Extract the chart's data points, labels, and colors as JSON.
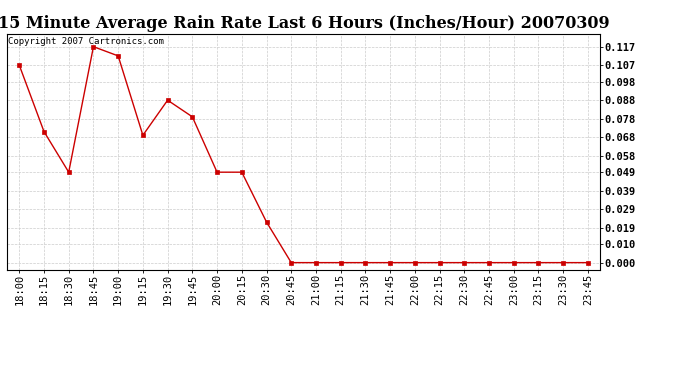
{
  "title": "15 Minute Average Rain Rate Last 6 Hours (Inches/Hour) 20070309",
  "copyright_text": "Copyright 2007 Cartronics.com",
  "line_color": "#cc0000",
  "marker_color": "#cc0000",
  "background_color": "#ffffff",
  "grid_color": "#cccccc",
  "x_labels": [
    "18:00",
    "18:15",
    "18:30",
    "18:45",
    "19:00",
    "19:15",
    "19:30",
    "19:45",
    "20:00",
    "20:15",
    "20:30",
    "20:45",
    "21:00",
    "21:15",
    "21:30",
    "21:45",
    "22:00",
    "22:15",
    "22:30",
    "22:45",
    "23:00",
    "23:15",
    "23:30",
    "23:45"
  ],
  "y_values": [
    0.107,
    0.071,
    0.049,
    0.117,
    0.112,
    0.069,
    0.088,
    0.079,
    0.049,
    0.049,
    0.022,
    0.0,
    0.0,
    0.0,
    0.0,
    0.0,
    0.0,
    0.0,
    0.0,
    0.0,
    0.0,
    0.0,
    0.0,
    0.0
  ],
  "yticks": [
    0.0,
    0.01,
    0.019,
    0.029,
    0.039,
    0.049,
    0.058,
    0.068,
    0.078,
    0.088,
    0.098,
    0.107,
    0.117
  ],
  "ytick_labels": [
    "0.000",
    "0.010",
    "0.019",
    "0.029",
    "0.039",
    "0.049",
    "0.058",
    "0.068",
    "0.078",
    "0.088",
    "0.098",
    "0.107",
    "0.117"
  ],
  "ylim": [
    -0.004,
    0.124
  ],
  "title_fontsize": 11.5,
  "tick_fontsize": 7.5,
  "copyright_fontsize": 6.5
}
